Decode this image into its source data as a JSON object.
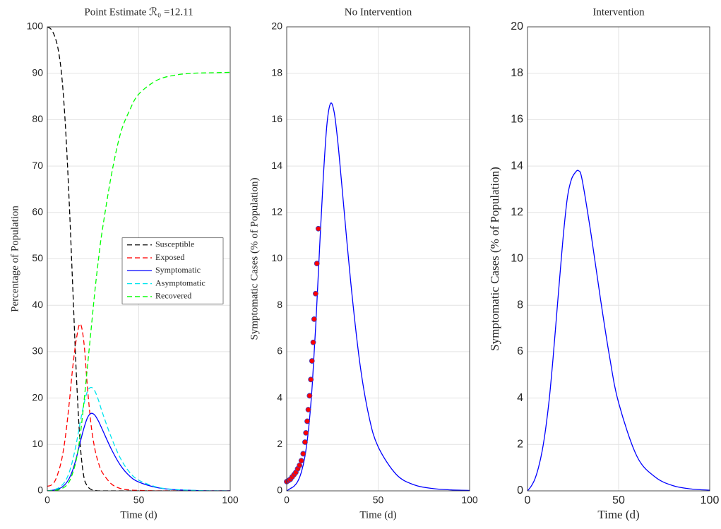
{
  "chart_data": [
    {
      "type": "line",
      "title": "Point Estimate ℛ₀ =12.11",
      "x_label": "Time (d)",
      "y_label": "Percentage of Population",
      "x": [
        0,
        2,
        4,
        6,
        8,
        10,
        12,
        14,
        16,
        18,
        20,
        22,
        24,
        26,
        28,
        30,
        35,
        40,
        45,
        50,
        60,
        70,
        80,
        90,
        100
      ],
      "xlim": [
        0,
        100
      ],
      "xticks": [
        0,
        50,
        100
      ],
      "ylim": [
        0,
        100
      ],
      "yticks": [
        0,
        10,
        20,
        30,
        40,
        50,
        60,
        70,
        80,
        90,
        100
      ],
      "grid": true,
      "legend": "right",
      "series": [
        {
          "name": "Susceptible",
          "color": "#000000",
          "style": "dashed",
          "values": [
            100,
            99.5,
            98,
            95,
            89,
            78,
            62,
            43,
            24,
            10,
            3,
            1,
            0.3,
            0.1,
            0,
            0,
            0,
            0,
            0,
            0,
            0,
            0,
            0,
            0,
            0
          ]
        },
        {
          "name": "Exposed",
          "color": "#ff0000",
          "style": "dashed",
          "values": [
            1,
            1.2,
            2,
            4,
            7,
            12,
            19,
            27,
            33,
            36,
            32,
            22,
            14,
            9,
            6,
            4,
            1.5,
            0.5,
            0.2,
            0.1,
            0,
            0,
            0,
            0,
            0
          ]
        },
        {
          "name": "Symptomatic",
          "color": "#0000ff",
          "style": "solid",
          "values": [
            0,
            0.1,
            0.2,
            0.4,
            0.8,
            1.5,
            2.7,
            4.6,
            7.3,
            10.5,
            13.5,
            15.8,
            16.7,
            16.3,
            15,
            13.3,
            9,
            5.5,
            3.2,
            1.9,
            0.7,
            0.25,
            0.1,
            0,
            0
          ]
        },
        {
          "name": "Asymptomatic",
          "color": "#00e5ee",
          "style": "dashed",
          "values": [
            0,
            0.1,
            0.3,
            0.6,
            1.2,
            2.2,
            4,
            6.8,
            10.5,
            14.8,
            18.7,
            21.5,
            22.3,
            21.5,
            19.5,
            17,
            11.5,
            7,
            4,
            2.3,
            0.8,
            0.3,
            0.1,
            0,
            0
          ]
        },
        {
          "name": "Recovered",
          "color": "#00ff00",
          "style": "dashed",
          "values": [
            0,
            0,
            0.1,
            0.2,
            0.5,
            1,
            2,
            4,
            7,
            12,
            19,
            27,
            35,
            43,
            50,
            56,
            68,
            77,
            82,
            85.5,
            88.5,
            89.6,
            90,
            90.1,
            90.2
          ]
        }
      ]
    },
    {
      "type": "line",
      "title": "No Intervention",
      "x_label": "Time (d)",
      "y_label": "Symptomatic Cases (% of Population)",
      "x": [
        0,
        2,
        4,
        6,
        8,
        10,
        12,
        14,
        16,
        18,
        20,
        22,
        24,
        26,
        28,
        30,
        35,
        40,
        45,
        50,
        60,
        70,
        80,
        90,
        100
      ],
      "xlim": [
        0,
        100
      ],
      "xticks": [
        0,
        50,
        100
      ],
      "ylim": [
        0,
        20
      ],
      "yticks": [
        0,
        2,
        4,
        6,
        8,
        10,
        12,
        14,
        16,
        18,
        20
      ],
      "grid": true,
      "series": [
        {
          "type": "line",
          "color": "#0000ff",
          "style": "solid",
          "values": [
            0,
            0.1,
            0.2,
            0.4,
            0.8,
            1.5,
            2.7,
            4.6,
            7.3,
            10.5,
            13.5,
            15.8,
            16.7,
            16.3,
            15,
            13.3,
            9,
            5.5,
            3.2,
            1.9,
            0.7,
            0.25,
            0.1,
            0.04,
            0.02
          ]
        },
        {
          "type": "scatter",
          "color": "#ff0000",
          "x": [
            0,
            1,
            2,
            3,
            4,
            5,
            6,
            7,
            8,
            9,
            10,
            10.5,
            11.2,
            11.8,
            12.5,
            13.2,
            13.8,
            14.5,
            15,
            15.8,
            16.5,
            17.3
          ],
          "values": [
            0.4,
            0.45,
            0.5,
            0.6,
            0.7,
            0.8,
            0.95,
            1.1,
            1.3,
            1.6,
            2.1,
            2.5,
            3,
            3.5,
            4.1,
            4.8,
            5.6,
            6.4,
            7.4,
            8.5,
            9.8,
            11.3
          ]
        }
      ]
    },
    {
      "type": "line",
      "title": "Intervention",
      "x_label": "Time (d)",
      "y_label": "Symptomatic Cases (% of Population)",
      "x": [
        0,
        2,
        4,
        6,
        8,
        10,
        12,
        14,
        16,
        18,
        20,
        22,
        24,
        26,
        28,
        30,
        35,
        40,
        45,
        50,
        60,
        70,
        80,
        90,
        100
      ],
      "xlim": [
        0,
        100
      ],
      "xticks": [
        0,
        50,
        100
      ],
      "ylim": [
        0,
        20
      ],
      "yticks": [
        0,
        2,
        4,
        6,
        8,
        10,
        12,
        14,
        16,
        18,
        20
      ],
      "grid": true,
      "series": [
        {
          "type": "line",
          "color": "#0000ff",
          "style": "solid",
          "values": [
            0,
            0.2,
            0.5,
            1,
            1.7,
            2.7,
            4,
            5.7,
            7.6,
            9.5,
            11.3,
            12.7,
            13.4,
            13.7,
            13.8,
            13.4,
            11,
            8.3,
            5.8,
            3.8,
            1.5,
            0.6,
            0.22,
            0.08,
            0.03
          ]
        }
      ]
    }
  ]
}
